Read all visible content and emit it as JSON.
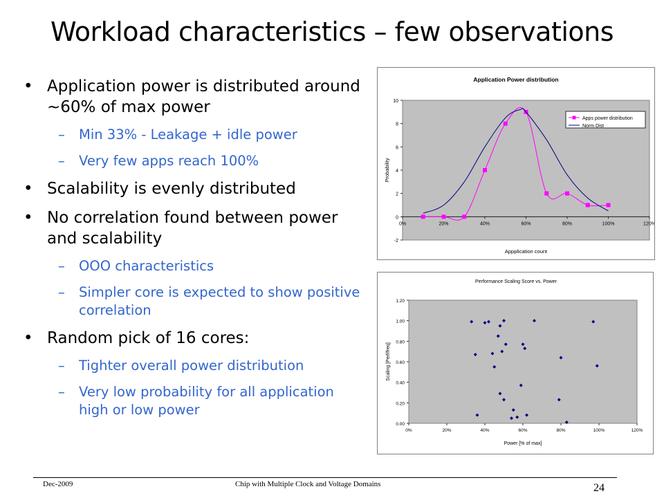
{
  "slide": {
    "title": "Workload characteristics – few observations",
    "bullets": [
      {
        "level": 1,
        "text": "Application power is distributed around ~60% of max power"
      },
      {
        "level": 2,
        "text": "Min 33% - Leakage + idle power"
      },
      {
        "level": 2,
        "text": "Very few apps reach 100%"
      },
      {
        "level": 1,
        "text": "Scalability is evenly distributed"
      },
      {
        "level": 1,
        "text": "No correlation found between power and scalability"
      },
      {
        "level": 2,
        "text": "OOO characteristics"
      },
      {
        "level": 2,
        "text": "Simpler core is expected to show positive correlation"
      },
      {
        "level": 1,
        "text": "Random pick of 16 cores:"
      },
      {
        "level": 2,
        "text": "Tighter overall power distribution"
      },
      {
        "level": 2,
        "text": "Very low probability for all application high or low power"
      }
    ],
    "bullet_glyph": "•",
    "dash_glyph": "–",
    "footer_left": "Dec-2009",
    "footer_center": "Chip with Multiple Clock and Voltage Domains",
    "page_number": "24",
    "colors": {
      "text": "#000000",
      "sub_bullet": "#3366cc",
      "plot_bg": "#c0c0c0",
      "magenta": "#ff00ff",
      "navy": "#000080"
    }
  },
  "chart_data": [
    {
      "type": "line",
      "title": "Application Power distribution",
      "xlabel": "Appplication count",
      "ylabel": "Probability",
      "xlim": [
        0,
        120
      ],
      "ylim": [
        -2,
        10
      ],
      "x_ticks": [
        "0%",
        "20%",
        "40%",
        "60%",
        "80%",
        "100%",
        "120%"
      ],
      "y_ticks": [
        "-2",
        "0",
        "2",
        "4",
        "6",
        "8",
        "10"
      ],
      "x_tick_values": [
        0,
        20,
        40,
        60,
        80,
        100,
        120
      ],
      "y_tick_values": [
        -2,
        0,
        2,
        4,
        6,
        8,
        10
      ],
      "grid": false,
      "legend": "right",
      "series": [
        {
          "name": "Apps power distribution",
          "color": "#ff00ff",
          "marker": "square",
          "smooth": true,
          "x": [
            10,
            20,
            30,
            40,
            50,
            60,
            70,
            80,
            90,
            100
          ],
          "y": [
            0,
            0,
            0,
            4,
            8,
            9,
            2,
            2,
            1,
            1
          ]
        },
        {
          "name": "Norm Dist",
          "color": "#000080",
          "marker": "none",
          "smooth": true,
          "x": [
            10,
            20,
            30,
            40,
            50,
            57,
            60,
            70,
            80,
            90,
            100
          ],
          "y": [
            0.3,
            1.0,
            3.0,
            6.0,
            8.5,
            9.2,
            9.0,
            6.6,
            3.6,
            1.6,
            0.5
          ]
        }
      ]
    },
    {
      "type": "scatter",
      "title": "Performance Scaling Score vs. Power",
      "xlabel": "Power [% of max]",
      "ylabel": "Scaling [Perf/freq]",
      "xlim": [
        0,
        120
      ],
      "ylim": [
        0,
        1.2
      ],
      "x_ticks": [
        "0%",
        "20%",
        "40%",
        "60%",
        "80%",
        "100%",
        "120%"
      ],
      "y_ticks": [
        "0.00",
        "0.20",
        "0.40",
        "0.60",
        "0.80",
        "1.00",
        "1.20"
      ],
      "x_tick_values": [
        0,
        20,
        40,
        60,
        80,
        100,
        120
      ],
      "y_tick_values": [
        0,
        0.2,
        0.4,
        0.6,
        0.8,
        1.0,
        1.2
      ],
      "grid": false,
      "legend": "none",
      "series": [
        {
          "color": "#000080",
          "marker": "diamond",
          "x": [
            33,
            40,
            42,
            50,
            66,
            97,
            48,
            47,
            35,
            49,
            51,
            60,
            61,
            44,
            45,
            80,
            59,
            48,
            50,
            55,
            57,
            54,
            36,
            62,
            79,
            83,
            99
          ],
          "y": [
            0.99,
            0.98,
            0.99,
            1.0,
            1.0,
            0.99,
            0.95,
            0.85,
            0.67,
            0.7,
            0.77,
            0.77,
            0.73,
            0.68,
            0.55,
            0.64,
            0.37,
            0.29,
            0.23,
            0.13,
            0.06,
            0.05,
            0.08,
            0.08,
            0.23,
            0.01,
            0.56
          ]
        }
      ]
    }
  ]
}
